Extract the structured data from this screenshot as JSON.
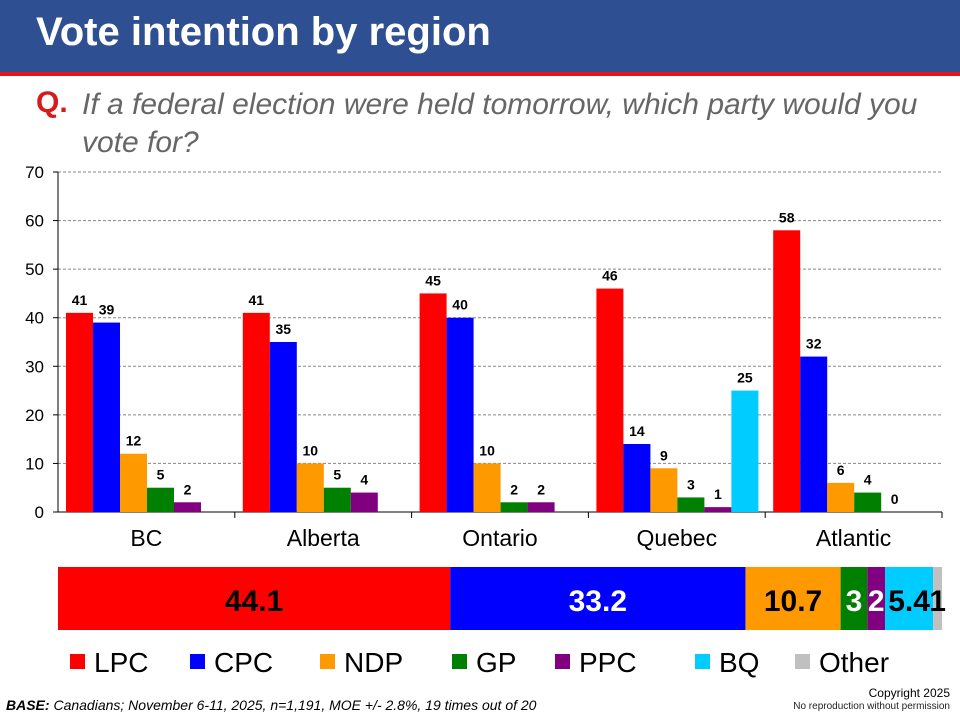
{
  "header": {
    "title": "Vote intention by region"
  },
  "question": {
    "label": "Q.",
    "text": "If a federal election were held tomorrow, which party would you vote for?"
  },
  "colors": {
    "LPC": "#FF0000",
    "CPC": "#0000FF",
    "NDP": "#FF9900",
    "GP": "#008000",
    "PPC": "#800080",
    "BQ": "#00CCFF",
    "Other": "#C0C0C0",
    "header": "#2F4F93"
  },
  "chart_data": [
    {
      "type": "bar",
      "ylim": [
        0,
        70
      ],
      "yticks": [
        0,
        10,
        20,
        30,
        40,
        50,
        60,
        70
      ],
      "grid": true,
      "categories": [
        "BC",
        "Alberta",
        "Ontario",
        "Quebec",
        "Atlantic"
      ],
      "series": [
        {
          "name": "LPC",
          "values": [
            41,
            41,
            45,
            46,
            58
          ]
        },
        {
          "name": "CPC",
          "values": [
            39,
            35,
            40,
            14,
            32
          ]
        },
        {
          "name": "NDP",
          "values": [
            12,
            10,
            10,
            9,
            6
          ]
        },
        {
          "name": "GP",
          "values": [
            5,
            5,
            2,
            3,
            4
          ]
        },
        {
          "name": "PPC",
          "values": [
            2,
            4,
            2,
            1,
            0
          ]
        },
        {
          "name": "BQ",
          "values": [
            null,
            null,
            null,
            25,
            null
          ]
        }
      ]
    },
    {
      "type": "bar",
      "stacked": true,
      "orientation": "horizontal",
      "segments": [
        {
          "name": "LPC",
          "value": 44.1,
          "label": "44.1"
        },
        {
          "name": "CPC",
          "value": 33.2,
          "label": "33.2"
        },
        {
          "name": "NDP",
          "value": 10.7,
          "label": "10.7"
        },
        {
          "name": "GP",
          "value": 3,
          "label": "3"
        },
        {
          "name": "PPC",
          "value": 2,
          "label": "2"
        },
        {
          "name": "BQ",
          "value": 5.4,
          "label": "5.4"
        },
        {
          "name": "Other",
          "value": 1,
          "label": "1"
        }
      ]
    }
  ],
  "legend": [
    "LPC",
    "CPC",
    "NDP",
    "GP",
    "PPC",
    "BQ",
    "Other"
  ],
  "footer": {
    "base_label": "BASE:",
    "base_text": " Canadians; November 6-11, 2025, n=1,191, MOE +/- 2.8%, 19 times out of 20",
    "copyright": "Copyright 2025",
    "notice": "No reproduction without permission"
  }
}
